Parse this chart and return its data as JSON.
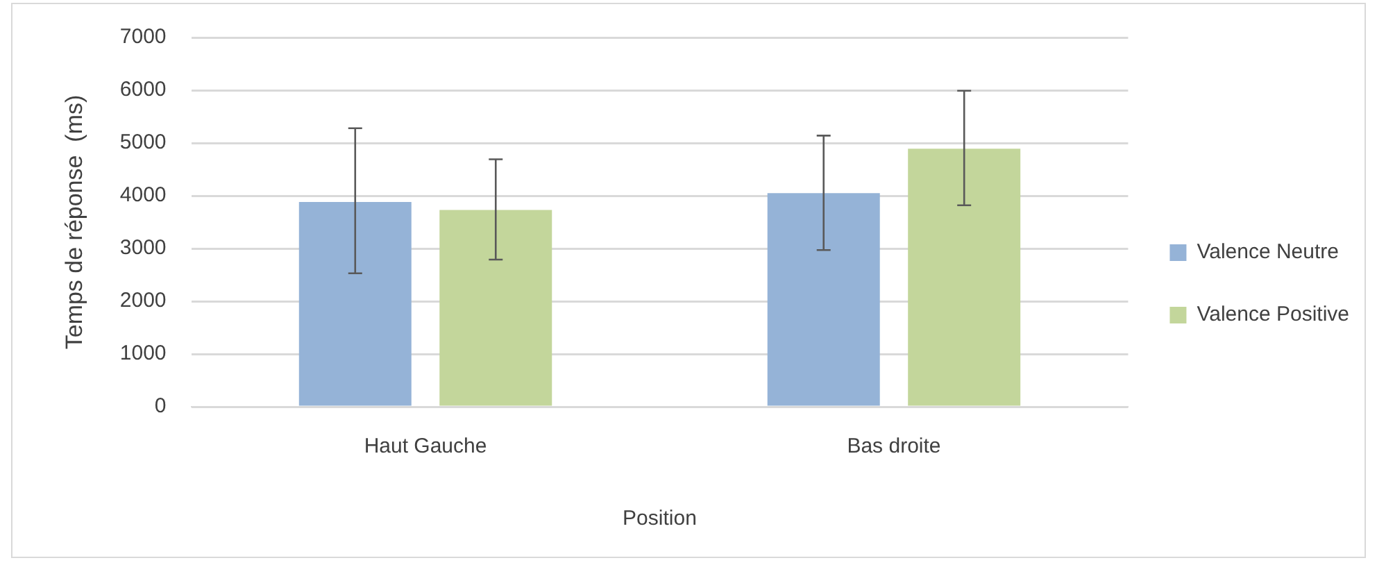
{
  "chart_data": {
    "type": "bar",
    "xlabel": "Position",
    "ylabel": "Temps de réponse  (ms)",
    "categories": [
      "Haut Gauche",
      "Bas droite"
    ],
    "series": [
      {
        "name": "Valence Neutre",
        "color": "#95b3d7",
        "values": [
          3880,
          4050
        ],
        "errors": [
          [
            2530,
            5280
          ],
          [
            2970,
            5140
          ]
        ]
      },
      {
        "name": "Valence Positive",
        "color": "#c3d69b",
        "values": [
          3730,
          4890
        ],
        "errors": [
          [
            2790,
            4690
          ],
          [
            3820,
            5990
          ]
        ]
      }
    ],
    "ylim": [
      0,
      7000
    ],
    "yticks": [
      0,
      1000,
      2000,
      3000,
      4000,
      5000,
      6000,
      7000
    ],
    "grid": "y",
    "legend": "right"
  }
}
